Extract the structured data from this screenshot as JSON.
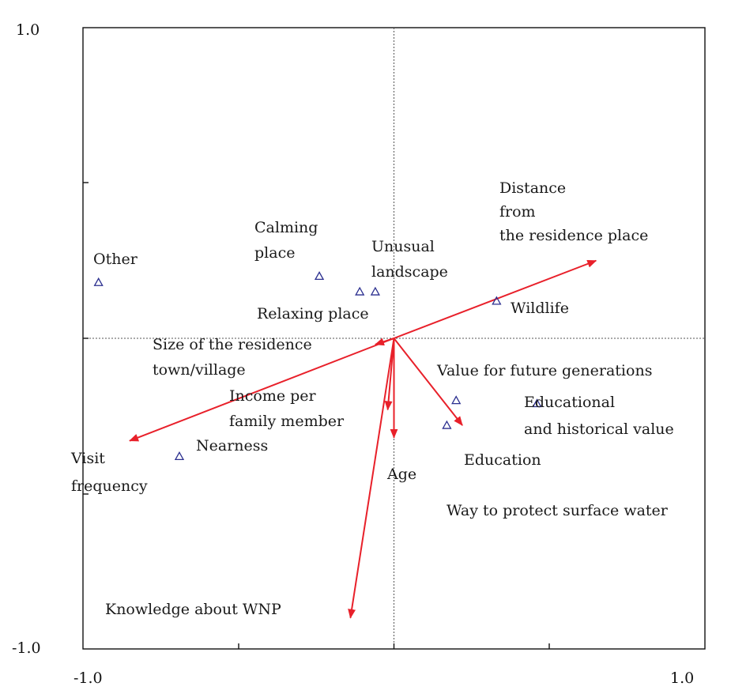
{
  "chart_data": {
    "type": "scatter",
    "subtype": "biplot",
    "title": "",
    "xlim": [
      -1.0,
      1.0
    ],
    "ylim": [
      -1.0,
      1.0
    ],
    "axis_labels": {
      "y_top": "1.0",
      "y_bottom": "-1.0",
      "x_left": "-1.0",
      "x_right": "1.0"
    },
    "grid": false,
    "reference_lines": "dotted lines at x=0 and y=0",
    "colors": {
      "arrows": "#e8202a",
      "points": "#2b2f8f"
    },
    "points": [
      {
        "name": "Other",
        "x": -0.95,
        "y": 0.18
      },
      {
        "name": "Calming place",
        "x": -0.24,
        "y": 0.2
      },
      {
        "name": "Unusual landscape a",
        "x": -0.11,
        "y": 0.15
      },
      {
        "name": "Unusual landscape b",
        "x": -0.06,
        "y": 0.15
      },
      {
        "name": "Wildlife",
        "x": 0.33,
        "y": 0.12
      },
      {
        "name": "Value for future generations",
        "x": 0.2,
        "y": -0.2
      },
      {
        "name": "Educational and historical value",
        "x": 0.46,
        "y": -0.21
      },
      {
        "name": "Education",
        "x": 0.17,
        "y": -0.28
      },
      {
        "name": "Nearness",
        "x": -0.69,
        "y": -0.38
      }
    ],
    "arrows": [
      {
        "name": "Distance from the residence place",
        "x": 0.65,
        "y": 0.25
      },
      {
        "name": "Size of the residence town/village",
        "x": -0.06,
        "y": -0.02
      },
      {
        "name": "Visit frequency",
        "x": -0.85,
        "y": -0.33
      },
      {
        "name": "Income per family member",
        "x": -0.02,
        "y": -0.23
      },
      {
        "name": "Age",
        "x": 0.0,
        "y": -0.32
      },
      {
        "name": "Way to protect surface water",
        "x": 0.22,
        "y": -0.28
      },
      {
        "name": "Knowledge about WNP",
        "x": -0.14,
        "y": -0.9
      }
    ],
    "labels": [
      {
        "id": "other",
        "text": "Other"
      },
      {
        "id": "calming1",
        "text": "Calming"
      },
      {
        "id": "calming2",
        "text": "place"
      },
      {
        "id": "unusual1",
        "text": "Unusual"
      },
      {
        "id": "unusual2",
        "text": "landscape"
      },
      {
        "id": "relaxing",
        "text": "Relaxing place"
      },
      {
        "id": "distance1",
        "text": "Distance"
      },
      {
        "id": "distance2",
        "text": "from"
      },
      {
        "id": "distance3",
        "text": "the residence place"
      },
      {
        "id": "wildlife",
        "text": "Wildlife"
      },
      {
        "id": "size1",
        "text": "Size of the residence"
      },
      {
        "id": "size2",
        "text": "town/village"
      },
      {
        "id": "income1",
        "text": "Income per"
      },
      {
        "id": "income2",
        "text": "family member"
      },
      {
        "id": "nearness",
        "text": "Nearness"
      },
      {
        "id": "visit1",
        "text": "Visit"
      },
      {
        "id": "visit2",
        "text": "frequency"
      },
      {
        "id": "age",
        "text": "Age"
      },
      {
        "id": "value",
        "text": "Value for future generations"
      },
      {
        "id": "edu1",
        "text": "Educational"
      },
      {
        "id": "edu2",
        "text": "and historical value"
      },
      {
        "id": "education",
        "text": "Education"
      },
      {
        "id": "water",
        "text": "Way to protect surface water"
      },
      {
        "id": "knowledge",
        "text": "Knowledge about WNP"
      }
    ]
  }
}
